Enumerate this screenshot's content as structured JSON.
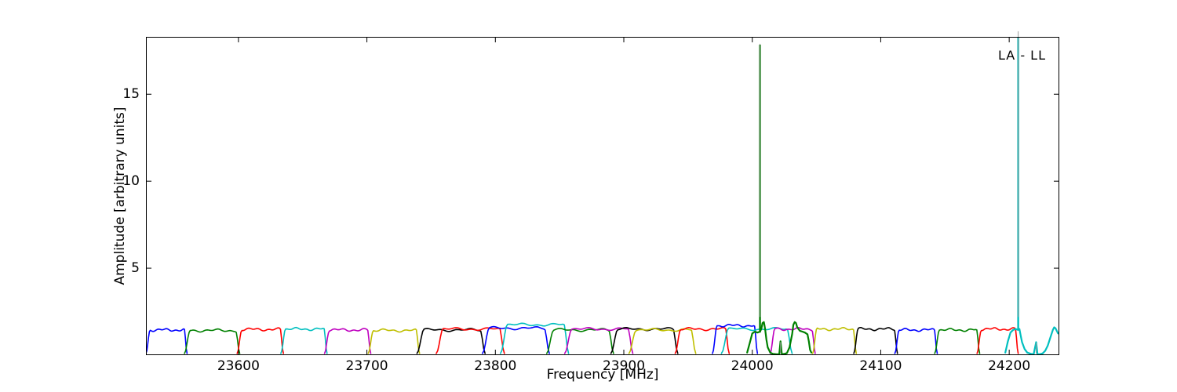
{
  "chart_data": {
    "type": "line",
    "title": "",
    "xlabel": "Frequency [MHz]",
    "ylabel": "Amplitude [arbitrary units]",
    "legend_label": "LA - LL",
    "xlim": [
      23528,
      24239
    ],
    "ylim": [
      0,
      18.3
    ],
    "x_ticks": [
      23600,
      23700,
      23800,
      23900,
      24000,
      24100,
      24200
    ],
    "y_ticks": [
      5,
      10,
      15
    ],
    "grid": false,
    "legend_position": "top-right-inside",
    "colors": {
      "b": "#0000ff",
      "g": "#008000",
      "r": "#ff0000",
      "c": "#00bfbf",
      "m": "#bf00bf",
      "y": "#bfbf00",
      "k": "#000000",
      "gray": "#9a9a9a",
      "frame": "#000000",
      "background": "#ffffff"
    },
    "description": "Comb of overlapping subband bandpass shapes at amplitude ~1.5 cycling through colors b,g,r,c,m,y,k; two tall narrow spikes: green at 24006 MHz (amp ~17.8) and cyan at 24207 MHz (clipped at plot top), each with a gray core line; small gray spikes inside the dips at 24022 and 24221 MHz.",
    "baseline_segments": [
      {
        "color": "b",
        "f0": 23528,
        "f1": 23560,
        "peak": 1.45
      },
      {
        "color": "g",
        "f0": 23558,
        "f1": 23601,
        "peak": 1.42
      },
      {
        "color": "r",
        "f0": 23599,
        "f1": 23635,
        "peak": 1.48
      },
      {
        "color": "c",
        "f0": 23633,
        "f1": 23669,
        "peak": 1.5
      },
      {
        "color": "m",
        "f0": 23667,
        "f1": 23703,
        "peak": 1.45
      },
      {
        "color": "y",
        "f0": 23701,
        "f1": 23741,
        "peak": 1.42
      },
      {
        "color": "k",
        "f0": 23739,
        "f1": 23792,
        "peak": 1.45
      },
      {
        "color": "r",
        "f0": 23754,
        "f1": 23807,
        "peak": 1.5
      },
      {
        "color": "b",
        "f0": 23790,
        "f1": 23842,
        "peak": 1.55
      },
      {
        "color": "c",
        "f0": 23804,
        "f1": 23857,
        "peak": 1.75
      },
      {
        "color": "g",
        "f0": 23840,
        "f1": 23892,
        "peak": 1.45
      },
      {
        "color": "m",
        "f0": 23854,
        "f1": 23907,
        "peak": 1.5
      },
      {
        "color": "k",
        "f0": 23890,
        "f1": 23942,
        "peak": 1.5
      },
      {
        "color": "y",
        "f0": 23904,
        "f1": 23956,
        "peak": 1.45
      },
      {
        "color": "r",
        "f0": 23940,
        "f1": 23982,
        "peak": 1.5
      },
      {
        "color": "b",
        "f0": 23969,
        "f1": 24004,
        "peak": 1.7
      },
      {
        "color": "c",
        "f0": 23976,
        "f1": 24031,
        "peak": 1.5
      },
      {
        "color": "m",
        "f0": 24014,
        "f1": 24049,
        "peak": 1.5
      },
      {
        "color": "y",
        "f0": 24047,
        "f1": 24081,
        "peak": 1.5
      },
      {
        "color": "k",
        "f0": 24079,
        "f1": 24113,
        "peak": 1.5
      },
      {
        "color": "b",
        "f0": 24111,
        "f1": 24144,
        "peak": 1.45
      },
      {
        "color": "g",
        "f0": 24142,
        "f1": 24177,
        "peak": 1.45
      },
      {
        "color": "r",
        "f0": 24175,
        "f1": 24207,
        "peak": 1.5
      }
    ],
    "features": [
      {
        "name": "green-bandpass-feature",
        "color": "g",
        "width": 2.2,
        "points": [
          [
            23996,
            0.15
          ],
          [
            23998,
            0.7
          ],
          [
            24000,
            1.25
          ],
          [
            24002,
            1.35
          ],
          [
            24004,
            1.3
          ],
          [
            24006,
            1.35
          ],
          [
            24007,
            1.5
          ],
          [
            24008,
            1.85
          ],
          [
            24009,
            1.9
          ],
          [
            24010,
            1.5
          ],
          [
            24011,
            0.9
          ],
          [
            24012,
            0.45
          ],
          [
            24014,
            0.15
          ],
          [
            24016,
            0.07
          ],
          [
            24019,
            0.05
          ],
          [
            24021,
            0.06
          ],
          [
            24022,
            0.8
          ],
          [
            24023,
            0.06
          ],
          [
            24025,
            0.07
          ],
          [
            24027,
            0.12
          ],
          [
            24029,
            0.45
          ],
          [
            24031,
            1.2
          ],
          [
            24032,
            1.75
          ],
          [
            24033,
            1.9
          ],
          [
            24034,
            1.85
          ],
          [
            24035,
            1.6
          ],
          [
            24037,
            1.4
          ],
          [
            24039,
            1.35
          ],
          [
            24041,
            1.3
          ],
          [
            24043,
            1.2
          ],
          [
            24044,
            0.8
          ],
          [
            24045,
            0.3
          ],
          [
            24046,
            0.15
          ]
        ]
      },
      {
        "name": "cyan-bandpass-feature",
        "color": "c",
        "width": 2.2,
        "points": [
          [
            24197,
            0.15
          ],
          [
            24199,
            0.8
          ],
          [
            24201,
            1.3
          ],
          [
            24203,
            1.45
          ],
          [
            24205,
            1.5
          ],
          [
            24207,
            1.45
          ],
          [
            24208,
            1.5
          ],
          [
            24209,
            1.1
          ],
          [
            24210,
            0.75
          ],
          [
            24212,
            0.35
          ],
          [
            24214,
            0.15
          ],
          [
            24217,
            0.07
          ],
          [
            24219,
            0.05
          ],
          [
            24221,
            0.75
          ],
          [
            24222,
            0.06
          ],
          [
            24224,
            0.06
          ],
          [
            24226,
            0.1
          ],
          [
            24228,
            0.25
          ],
          [
            24230,
            0.55
          ],
          [
            24232,
            1.0
          ],
          [
            24234,
            1.45
          ],
          [
            24235,
            1.6
          ],
          [
            24236,
            1.55
          ],
          [
            24238,
            1.25
          ]
        ]
      }
    ],
    "spikes": [
      {
        "name": "green-spike",
        "f": 24006,
        "a0": 1.3,
        "a1": 17.85,
        "color": "g",
        "width": 2.4,
        "clip": true
      },
      {
        "name": "green-spike-gray-core",
        "f": 24006,
        "a0": 2.2,
        "a1": 17.9,
        "color": "gray",
        "width": 1.0,
        "clip": true
      },
      {
        "name": "cyan-spike",
        "f": 24207,
        "a0": 1.45,
        "a1": 18.3,
        "color": "c",
        "width": 2.4,
        "clip": true
      },
      {
        "name": "cyan-spike-gray-core",
        "f": 24207,
        "a0": 2.2,
        "a1": 18.62,
        "color": "gray",
        "width": 1.0,
        "clip": false
      },
      {
        "name": "gray-spike-in-green-dip",
        "f": 24022,
        "a0": 0.1,
        "a1": 0.75,
        "color": "gray",
        "width": 1.0,
        "clip": true
      },
      {
        "name": "gray-spike-in-cyan-dip",
        "f": 24221,
        "a0": 0.1,
        "a1": 0.7,
        "color": "gray",
        "width": 1.0,
        "clip": true
      }
    ]
  }
}
